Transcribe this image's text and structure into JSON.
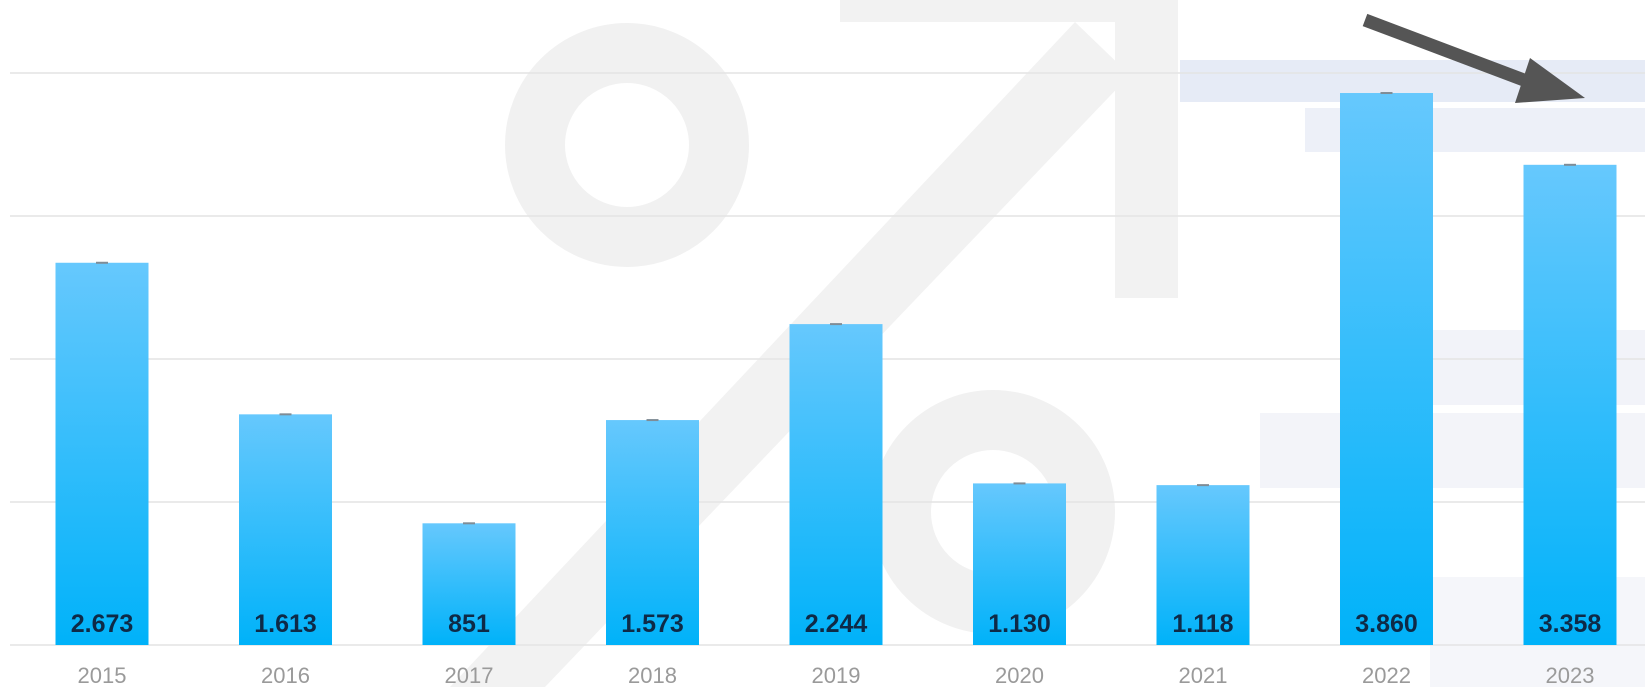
{
  "chart_data": {
    "type": "bar",
    "categories": [
      "2015",
      "2016",
      "2017",
      "2018",
      "2019",
      "2020",
      "2021",
      "2022",
      "2023"
    ],
    "values": [
      2673,
      1613,
      851,
      1573,
      2244,
      1130,
      1118,
      3860,
      3358
    ],
    "value_labels": [
      "2.673",
      "1.613",
      "851",
      "1.573",
      "2.244",
      "1.130",
      "1.118",
      "3.860",
      "3.358"
    ],
    "title": "",
    "xlabel": "",
    "ylabel": "",
    "ylim": [
      0,
      4000
    ],
    "grid": true,
    "legend": "none",
    "bar_color_top": "#66c8fd",
    "bar_color_bottom": "#00b2f9",
    "label_color": "#0e2a47",
    "tick_color": "#9a9a9a",
    "annotation": "arrow pointing to 2023"
  }
}
